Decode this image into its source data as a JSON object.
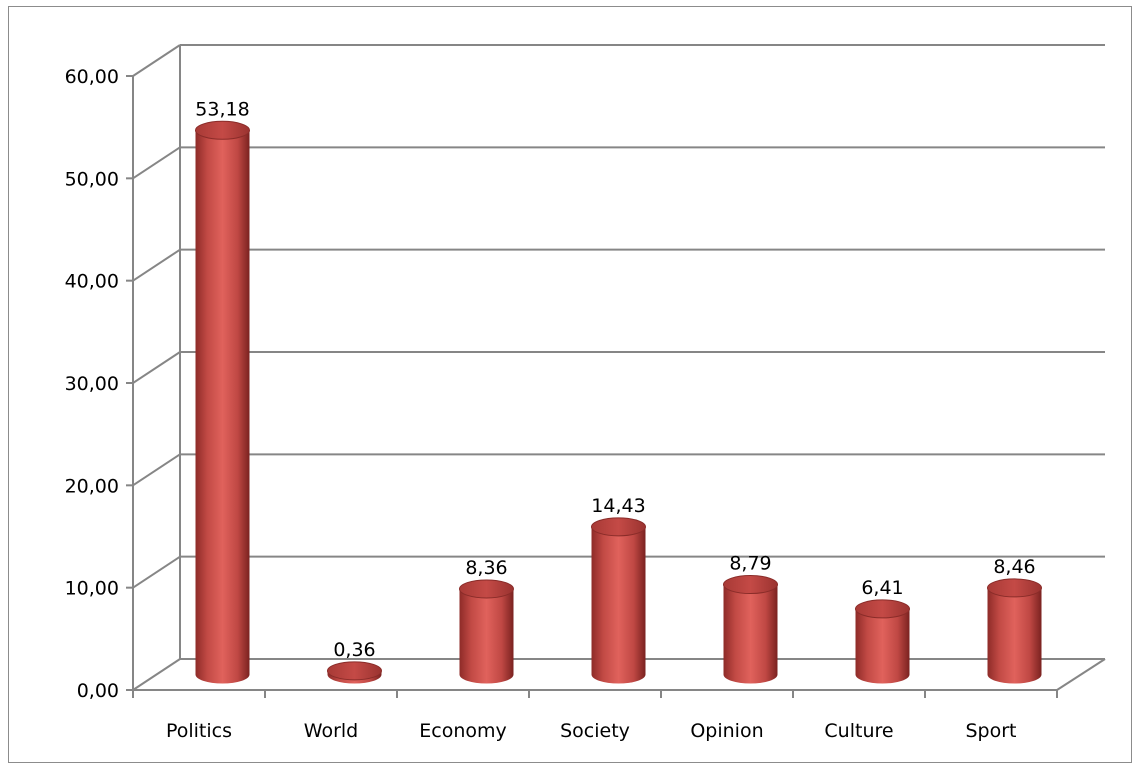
{
  "chart_data": {
    "type": "bar",
    "style": "3d-cylinder",
    "categories": [
      "Politics",
      "World",
      "Economy",
      "Society",
      "Opinion",
      "Culture",
      "Sport"
    ],
    "values": [
      53.18,
      0.36,
      8.36,
      14.43,
      8.79,
      6.41,
      8.46
    ],
    "value_labels": [
      "53,18",
      "0,36",
      "8,36",
      "14,43",
      "8,79",
      "6,41",
      "8,46"
    ],
    "ylim": [
      0,
      60
    ],
    "yticks": [
      "0,00",
      "10,00",
      "20,00",
      "30,00",
      "40,00",
      "50,00",
      "60,00"
    ],
    "grid": true,
    "legend": "none",
    "bar_color": "#c0504d",
    "title": "",
    "xlabel": "",
    "ylabel": ""
  }
}
